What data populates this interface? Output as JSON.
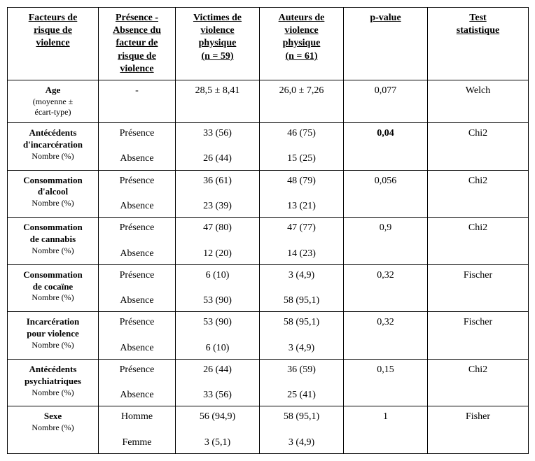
{
  "columns": {
    "c1": {
      "lines": [
        "Facteurs de",
        "risque de",
        "violence"
      ]
    },
    "c2": {
      "lines": [
        "Présence -",
        "Absence du",
        "facteur de",
        "risque de",
        "violence"
      ]
    },
    "c3": {
      "lines": [
        "Victimes de",
        "violence",
        "physique",
        "(n = 59)"
      ]
    },
    "c4": {
      "lines": [
        "Auteurs de",
        "violence",
        "physique",
        "(n = 61)"
      ]
    },
    "c5": {
      "lines": [
        "p-value"
      ]
    },
    "c6": {
      "lines": [
        "Test",
        "statistique"
      ]
    }
  },
  "rows": [
    {
      "label_main": "Age",
      "label_sub": "(moyenne ±\nécart-type)",
      "pa": "-",
      "victimes": "28,5 ± 8,41",
      "auteurs": "26,0 ± 7,26",
      "p": "0,077",
      "p_bold": false,
      "test": "Welch"
    },
    {
      "label_main": "Antécédents\nd'incarcération",
      "label_sub": "Nombre (%)",
      "pa": "Présence\n\nAbsence",
      "victimes": "33 (56)\n\n26 (44)",
      "auteurs": "46 (75)\n\n15 (25)",
      "p": "0,04",
      "p_bold": true,
      "test": "Chi2"
    },
    {
      "label_main": "Consommation\nd'alcool",
      "label_sub": "Nombre (%)",
      "pa": "Présence\n\nAbsence",
      "victimes": "36 (61)\n\n23 (39)",
      "auteurs": "48 (79)\n\n13 (21)",
      "p": "0,056",
      "p_bold": false,
      "test": "Chi2"
    },
    {
      "label_main": "Consommation\nde cannabis",
      "label_sub": "Nombre (%)",
      "pa": "Présence\n\nAbsence",
      "victimes": "47 (80)\n\n12 (20)",
      "auteurs": "47 (77)\n\n14 (23)",
      "p": "0,9",
      "p_bold": false,
      "test": "Chi2"
    },
    {
      "label_main": "Consommation\nde cocaïne",
      "label_sub": "Nombre (%)",
      "pa": "Présence\n\nAbsence",
      "victimes": "6 (10)\n\n53 (90)",
      "auteurs": "3 (4,9)\n\n58 (95,1)",
      "p": "0,32",
      "p_bold": false,
      "test": "Fischer"
    },
    {
      "label_main": "Incarcération\npour violence",
      "label_sub": "Nombre (%)",
      "pa": "Présence\n\nAbsence",
      "victimes": "53 (90)\n\n6 (10)",
      "auteurs": "58 (95,1)\n\n3 (4,9)",
      "p": "0,32",
      "p_bold": false,
      "test": "Fischer"
    },
    {
      "label_main": "Antécédents\npsychiatriques",
      "label_sub": "Nombre (%)",
      "pa": "Présence\n\nAbsence",
      "victimes": "26 (44)\n\n33 (56)",
      "auteurs": "36 (59)\n\n25 (41)",
      "p": "0,15",
      "p_bold": false,
      "test": "Chi2"
    },
    {
      "label_main": "Sexe",
      "label_sub": "Nombre (%)",
      "pa": "Homme\n\nFemme",
      "victimes": "56 (94,9)\n\n3 (5,1)",
      "auteurs": "58 (95,1)\n\n3 (4,9)",
      "p": "1",
      "p_bold": false,
      "test": "Fisher"
    }
  ],
  "style": {
    "font_family": "Times New Roman",
    "font_size_pt": 11,
    "border_color": "#000000",
    "background_color": "#ffffff",
    "text_color": "#000000"
  }
}
